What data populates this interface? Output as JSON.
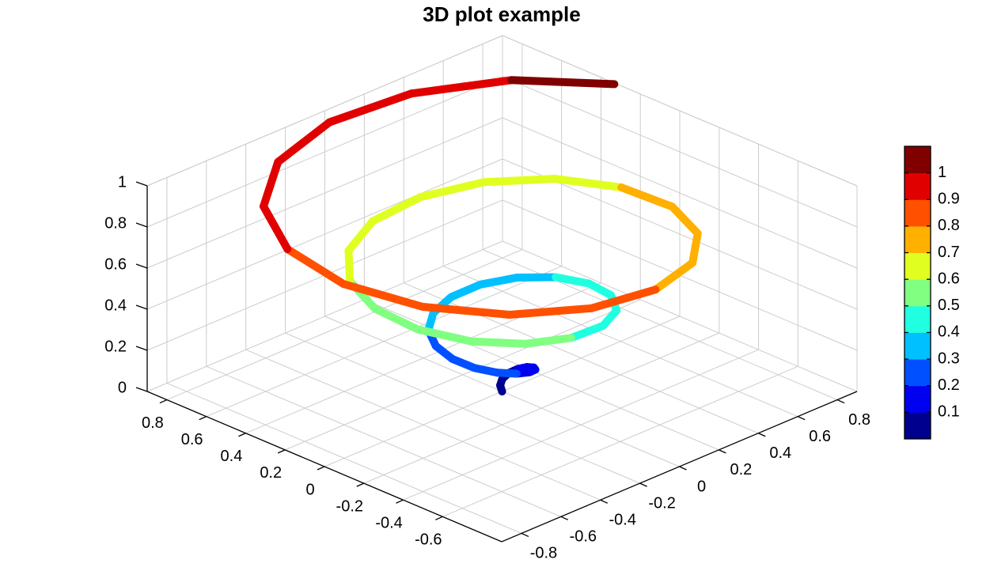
{
  "chart_data": {
    "type": "line3d",
    "title": "3D plot example",
    "series": [
      {
        "x": [
          0,
          0.017,
          0.026,
          0.02,
          -0.003,
          -0.04,
          -0.085,
          -0.126,
          -0.152,
          -0.152,
          -0.122,
          -0.061,
          0.024,
          0.12,
          0.21,
          0.275,
          0.301,
          0.277,
          0.201,
          0.081,
          -0.066,
          -0.217,
          -0.347,
          -0.429,
          -0.446,
          -0.389,
          -0.262,
          -0.08,
          0.129,
          0.332,
          0.494,
          0.585,
          0.584,
          0.487,
          0.303,
          0.058,
          -0.211,
          -0.461,
          -0.649,
          -0.74,
          -0.714,
          -0.57,
          -0.325,
          -0.014,
          0.313,
          0.605,
          0.81,
          0.893,
          0.833,
          0.635,
          0.325
        ],
        "y": [
          0,
          0.007,
          0.027,
          0.053,
          0.076,
          0.086,
          0.076,
          0.043,
          -0.011,
          -0.078,
          -0.146,
          -0.2,
          -0.227,
          -0.216,
          -0.164,
          -0.074,
          0.042,
          0.166,
          0.277,
          0.352,
          0.374,
          0.335,
          0.234,
          0.083,
          -0.095,
          -0.272,
          -0.419,
          -0.507,
          -0.516,
          -0.44,
          -0.285,
          -0.072,
          0.168,
          0.395,
          0.57,
          0.662,
          0.651,
          0.531,
          0.317,
          0.039,
          -0.26,
          -0.531,
          -0.729,
          -0.817,
          -0.775,
          -0.605,
          -0.327,
          0.016,
          0.371,
          0.681,
          0.893
        ],
        "z": [
          0,
          0.02,
          0.04,
          0.06,
          0.08,
          0.1,
          0.12,
          0.14,
          0.16,
          0.18,
          0.2,
          0.22,
          0.24,
          0.26,
          0.28,
          0.3,
          0.32,
          0.34,
          0.36,
          0.38,
          0.4,
          0.42,
          0.44,
          0.46,
          0.48,
          0.5,
          0.52,
          0.54,
          0.56,
          0.58,
          0.6,
          0.62,
          0.64,
          0.66,
          0.68,
          0.7,
          0.72,
          0.74,
          0.76,
          0.78,
          0.8,
          0.82,
          0.84,
          0.86,
          0.88,
          0.9,
          0.92,
          0.94,
          0.96,
          0.98,
          1
        ]
      }
    ],
    "xlim": [
      -0.9,
      0.9
    ],
    "xticks": [
      0.8,
      0.6,
      0.4,
      0.2,
      0,
      -0.2,
      -0.4,
      -0.6
    ],
    "ylim": [
      -0.9,
      0.9
    ],
    "yticks": [
      0.8,
      0.6,
      0.4,
      0.2,
      0,
      -0.2,
      -0.4,
      -0.6,
      -0.8
    ],
    "zlim": [
      0,
      1
    ],
    "zticks": [
      0,
      0.2,
      0.4,
      0.6,
      0.8,
      1
    ],
    "grid": true,
    "colormap": [
      "#00008f",
      "#0000f0",
      "#0050ff",
      "#00c0ff",
      "#20ffe0",
      "#80ff80",
      "#e0ff20",
      "#ffb000",
      "#ff5000",
      "#e00000",
      "#800000"
    ],
    "clim": [
      0,
      1.1
    ],
    "cticks": [
      0.1,
      0.2,
      0.3,
      0.4,
      0.5,
      0.6,
      0.7,
      0.8,
      0.9,
      1
    ]
  }
}
